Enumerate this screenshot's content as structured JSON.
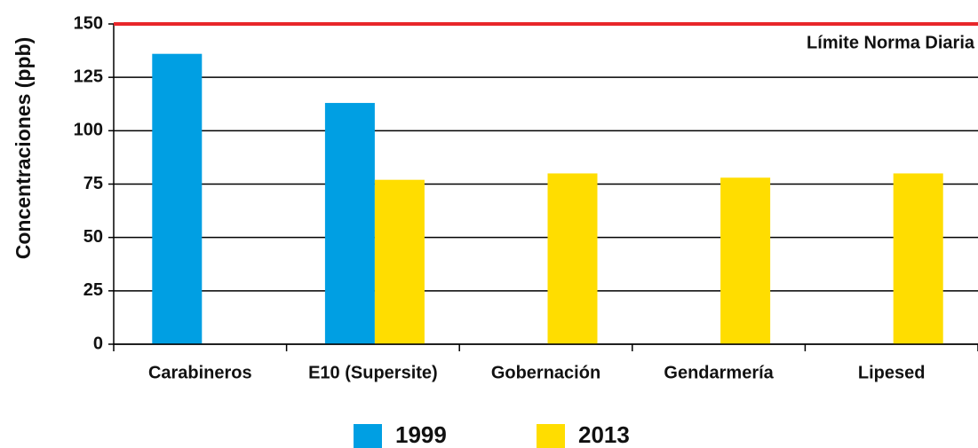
{
  "chart_data": {
    "type": "bar",
    "y_label": "Concentraciones (ppb)",
    "categories": [
      "Carabineros",
      "E10 (Supersite)",
      "Gobernación",
      "Gendarmería",
      "Lipesed"
    ],
    "series": [
      {
        "name": "1999",
        "color": "#009fe3",
        "values": [
          136,
          113,
          null,
          null,
          null
        ]
      },
      {
        "name": "2013",
        "color": "#ffdd00",
        "values": [
          null,
          77,
          80,
          78,
          80
        ]
      }
    ],
    "ylim": [
      0,
      150
    ],
    "yticks": [
      0,
      25,
      50,
      75,
      100,
      125,
      150
    ],
    "grid": true,
    "reference_line": {
      "value": 150,
      "label": "Límite Norma Diaria",
      "color": "#e8262a"
    },
    "legend": "bottom"
  }
}
